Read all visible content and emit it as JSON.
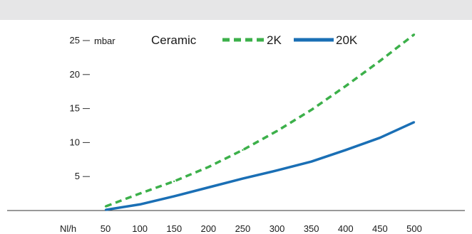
{
  "chart_data": {
    "type": "line",
    "title": "Ceramic",
    "xlabel": "Nl/h",
    "ylabel": "mbar",
    "x": [
      50,
      100,
      150,
      200,
      250,
      300,
      350,
      400,
      450,
      500
    ],
    "x_ticks": [
      "50",
      "100",
      "150",
      "200",
      "250",
      "300",
      "350",
      "400",
      "450",
      "500"
    ],
    "y_ticks": [
      "5",
      "10",
      "15",
      "20",
      "25"
    ],
    "xlim": [
      50,
      500
    ],
    "ylim": [
      0,
      25
    ],
    "grid": false,
    "legend_position": "top",
    "series": [
      {
        "name": "2K",
        "style": "dashed",
        "color": "#3cb04a",
        "values": [
          0.6,
          2.5,
          4.3,
          6.4,
          8.9,
          11.7,
          14.8,
          18.3,
          22.0,
          25.9
        ]
      },
      {
        "name": "20K",
        "style": "solid",
        "color": "#1a6fb5",
        "values": [
          0.1,
          0.9,
          2.1,
          3.4,
          4.7,
          5.9,
          7.2,
          8.9,
          10.7,
          13.0
        ]
      }
    ]
  },
  "colors": {
    "top_band": "#e6e6e7",
    "axis": "#333333"
  }
}
